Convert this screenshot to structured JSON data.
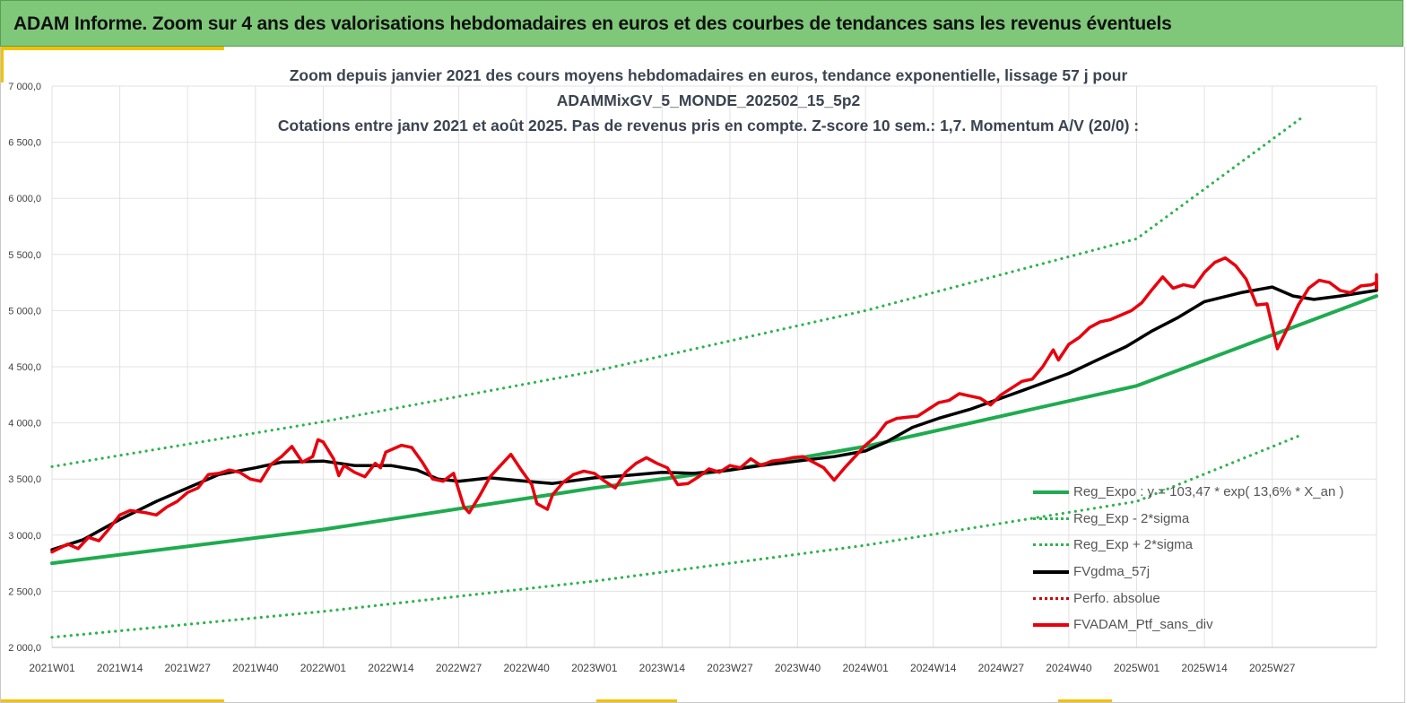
{
  "banner": {
    "title": "ADAM Informe. Zoom sur 4 ans des valorisations hebdomadaires en euros et des courbes de tendances sans les revenus éventuels"
  },
  "colors": {
    "banner_bg": "#7fc87a",
    "accent": "#f2c200",
    "regression": "#1fab4f",
    "sigma": "#2eb34f",
    "moving_average": "#000000",
    "perfo_absolue": "#d00000",
    "portfolio": "#e8000d"
  },
  "chart_data": {
    "type": "line",
    "title_lines": [
      "Zoom depuis janvier 2021 des cours moyens hebdomadaires  en euros, tendance exponentielle, lissage 57 j pour",
      "ADAMMixGV_5_MONDE_202502_15_5p2",
      "Cotations entre janv 2021 et août 2025. Pas de revenus pris en compte. Z-score 10 sem.: 1,7. Momentum A/V (20/0) :"
    ],
    "xlabel": "",
    "ylabel": "",
    "ylim": [
      2000,
      7000
    ],
    "y_ticks": [
      "2 000,0",
      "2 500,0",
      "3 000,0",
      "3 500,0",
      "4 000,0",
      "4 500,0",
      "5 000,0",
      "5 500,0",
      "6 000,0",
      "6 500,0",
      "7 000,0"
    ],
    "x_tick_labels": [
      "2021W01",
      "2021W14",
      "2021W27",
      "2021W40",
      "2022W01",
      "2022W14",
      "2022W27",
      "2022W40",
      "2023W01",
      "2023W14",
      "2023W27",
      "2023W40",
      "2024W01",
      "2024W14",
      "2024W27",
      "2024W40",
      "2025W01",
      "2025W14",
      "2025W27"
    ],
    "x_domain_weeks": [
      0,
      240
    ],
    "grid": true,
    "legend_position": "bottom-right",
    "series": [
      {
        "name": "Reg_Expo : y = 103,47 * exp( 13,6% *  X_an )",
        "style": "solid",
        "color_key": "regression",
        "points": [
          [
            0,
            2750
          ],
          [
            52,
            3050
          ],
          [
            104,
            3420
          ],
          [
            130,
            3580
          ],
          [
            156,
            3790
          ],
          [
            208,
            4330
          ],
          [
            260,
            5130
          ]
        ]
      },
      {
        "name": "Reg_Exp - 2*sigma",
        "style": "dotted",
        "color_key": "sigma",
        "points": [
          [
            0,
            2090
          ],
          [
            52,
            2320
          ],
          [
            104,
            2590
          ],
          [
            156,
            2910
          ],
          [
            208,
            3300
          ],
          [
            240,
            3900
          ]
        ]
      },
      {
        "name": "Reg_Exp + 2*sigma",
        "style": "dotted",
        "color_key": "sigma",
        "points": [
          [
            0,
            3610
          ],
          [
            52,
            4010
          ],
          [
            104,
            4460
          ],
          [
            156,
            5000
          ],
          [
            208,
            5640
          ],
          [
            240,
            6730
          ]
        ]
      },
      {
        "name": "FVgdma_57j",
        "style": "solid",
        "color_key": "moving_average",
        "points": [
          [
            0,
            2870
          ],
          [
            6,
            2960
          ],
          [
            13,
            3140
          ],
          [
            20,
            3300
          ],
          [
            26,
            3420
          ],
          [
            32,
            3540
          ],
          [
            39,
            3600
          ],
          [
            44,
            3650
          ],
          [
            52,
            3660
          ],
          [
            58,
            3620
          ],
          [
            65,
            3620
          ],
          [
            70,
            3580
          ],
          [
            74,
            3500
          ],
          [
            78,
            3480
          ],
          [
            84,
            3510
          ],
          [
            91,
            3480
          ],
          [
            96,
            3460
          ],
          [
            104,
            3510
          ],
          [
            110,
            3530
          ],
          [
            117,
            3560
          ],
          [
            123,
            3550
          ],
          [
            130,
            3580
          ],
          [
            136,
            3620
          ],
          [
            143,
            3660
          ],
          [
            150,
            3700
          ],
          [
            156,
            3750
          ],
          [
            160,
            3830
          ],
          [
            165,
            3960
          ],
          [
            170,
            4040
          ],
          [
            176,
            4120
          ],
          [
            182,
            4220
          ],
          [
            188,
            4320
          ],
          [
            195,
            4440
          ],
          [
            200,
            4550
          ],
          [
            206,
            4680
          ],
          [
            211,
            4820
          ],
          [
            216,
            4940
          ],
          [
            221,
            5080
          ],
          [
            228,
            5160
          ],
          [
            234,
            5210
          ],
          [
            238,
            5130
          ],
          [
            242,
            5100
          ],
          [
            247,
            5130
          ],
          [
            255,
            5180
          ],
          [
            262,
            5250
          ]
        ]
      },
      {
        "name": "Perfo. absolue",
        "style": "dotted",
        "color_key": "perfo_absolue",
        "points": []
      },
      {
        "name": "FVADAM_Ptf_sans_div",
        "style": "solid",
        "color_key": "portfolio",
        "points": [
          [
            0,
            2850
          ],
          [
            3,
            2920
          ],
          [
            5,
            2880
          ],
          [
            7,
            2980
          ],
          [
            9,
            2950
          ],
          [
            11,
            3060
          ],
          [
            13,
            3180
          ],
          [
            15,
            3220
          ],
          [
            18,
            3200
          ],
          [
            20,
            3180
          ],
          [
            22,
            3250
          ],
          [
            24,
            3300
          ],
          [
            26,
            3380
          ],
          [
            28,
            3420
          ],
          [
            30,
            3540
          ],
          [
            32,
            3550
          ],
          [
            34,
            3580
          ],
          [
            36,
            3560
          ],
          [
            38,
            3500
          ],
          [
            40,
            3480
          ],
          [
            42,
            3630
          ],
          [
            44,
            3700
          ],
          [
            46,
            3790
          ],
          [
            47,
            3720
          ],
          [
            48,
            3650
          ],
          [
            50,
            3700
          ],
          [
            51,
            3850
          ],
          [
            52,
            3830
          ],
          [
            54,
            3680
          ],
          [
            55,
            3530
          ],
          [
            56,
            3620
          ],
          [
            58,
            3560
          ],
          [
            60,
            3520
          ],
          [
            62,
            3640
          ],
          [
            63,
            3600
          ],
          [
            64,
            3740
          ],
          [
            66,
            3780
          ],
          [
            67,
            3800
          ],
          [
            69,
            3780
          ],
          [
            71,
            3650
          ],
          [
            73,
            3500
          ],
          [
            75,
            3480
          ],
          [
            77,
            3550
          ],
          [
            79,
            3250
          ],
          [
            80,
            3200
          ],
          [
            82,
            3350
          ],
          [
            84,
            3520
          ],
          [
            86,
            3620
          ],
          [
            88,
            3720
          ],
          [
            90,
            3580
          ],
          [
            92,
            3450
          ],
          [
            93,
            3280
          ],
          [
            95,
            3230
          ],
          [
            96,
            3360
          ],
          [
            98,
            3470
          ],
          [
            100,
            3540
          ],
          [
            102,
            3570
          ],
          [
            104,
            3550
          ],
          [
            106,
            3480
          ],
          [
            108,
            3420
          ],
          [
            110,
            3560
          ],
          [
            112,
            3640
          ],
          [
            114,
            3690
          ],
          [
            116,
            3640
          ],
          [
            118,
            3600
          ],
          [
            120,
            3450
          ],
          [
            122,
            3460
          ],
          [
            124,
            3520
          ],
          [
            126,
            3590
          ],
          [
            128,
            3560
          ],
          [
            130,
            3620
          ],
          [
            132,
            3600
          ],
          [
            134,
            3680
          ],
          [
            136,
            3620
          ],
          [
            138,
            3660
          ],
          [
            140,
            3670
          ],
          [
            142,
            3690
          ],
          [
            144,
            3700
          ],
          [
            146,
            3650
          ],
          [
            148,
            3600
          ],
          [
            150,
            3490
          ],
          [
            152,
            3600
          ],
          [
            154,
            3700
          ],
          [
            156,
            3800
          ],
          [
            158,
            3880
          ],
          [
            160,
            4000
          ],
          [
            162,
            4040
          ],
          [
            164,
            4050
          ],
          [
            166,
            4060
          ],
          [
            168,
            4120
          ],
          [
            170,
            4180
          ],
          [
            172,
            4200
          ],
          [
            174,
            4260
          ],
          [
            176,
            4240
          ],
          [
            178,
            4220
          ],
          [
            180,
            4160
          ],
          [
            182,
            4250
          ],
          [
            184,
            4310
          ],
          [
            186,
            4370
          ],
          [
            188,
            4390
          ],
          [
            190,
            4500
          ],
          [
            192,
            4650
          ],
          [
            193,
            4560
          ],
          [
            195,
            4700
          ],
          [
            197,
            4760
          ],
          [
            199,
            4850
          ],
          [
            201,
            4900
          ],
          [
            203,
            4920
          ],
          [
            205,
            4960
          ],
          [
            207,
            5000
          ],
          [
            209,
            5070
          ],
          [
            211,
            5190
          ],
          [
            213,
            5300
          ],
          [
            215,
            5200
          ],
          [
            217,
            5230
          ],
          [
            219,
            5210
          ],
          [
            221,
            5340
          ],
          [
            223,
            5430
          ],
          [
            225,
            5470
          ],
          [
            227,
            5400
          ],
          [
            229,
            5280
          ],
          [
            231,
            5050
          ],
          [
            233,
            5060
          ],
          [
            235,
            4660
          ],
          [
            237,
            4850
          ],
          [
            239,
            5050
          ],
          [
            241,
            5200
          ],
          [
            243,
            5270
          ],
          [
            245,
            5250
          ],
          [
            247,
            5180
          ],
          [
            249,
            5160
          ],
          [
            251,
            5220
          ],
          [
            253,
            5230
          ],
          [
            255,
            5250
          ],
          [
            257,
            5200
          ],
          [
            259,
            5280
          ],
          [
            260,
            5320
          ]
        ]
      }
    ]
  }
}
